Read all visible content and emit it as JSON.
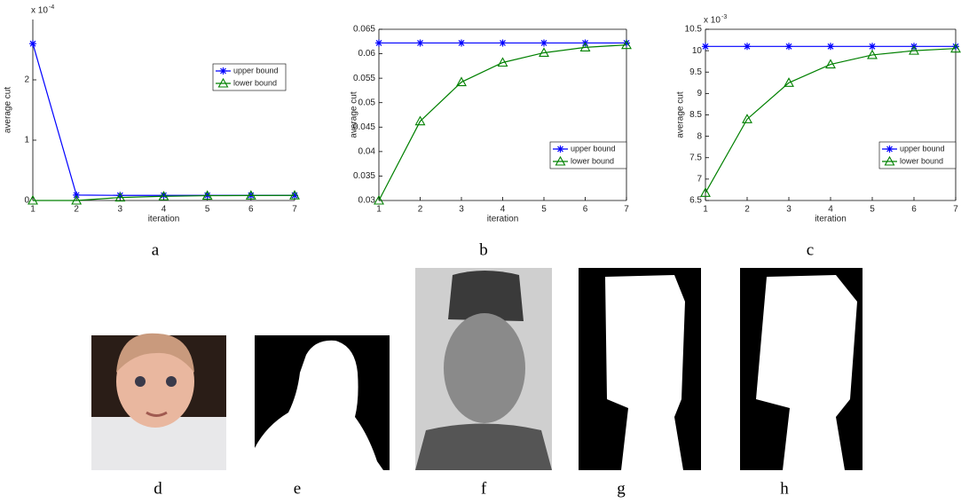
{
  "chart_data": [
    {
      "type": "line",
      "xlabel": "iteration",
      "ylabel": "average cut",
      "y_multiplier": {
        "base": "x 10",
        "exponent": "-4"
      },
      "x": [
        1,
        2,
        3,
        4,
        5,
        6,
        7
      ],
      "xlim": [
        1,
        7
      ],
      "xticks": [
        1,
        2,
        3,
        4,
        5,
        6,
        7
      ],
      "ylim": [
        0,
        3
      ],
      "yticks": [
        0,
        1,
        2
      ],
      "legend": "upper right",
      "box": false,
      "series": [
        {
          "name": "upper bound",
          "color": "#0000ff",
          "marker": "star",
          "values": [
            2.6,
            0.09,
            0.085,
            0.085,
            0.085,
            0.085,
            0.085
          ]
        },
        {
          "name": "lower bound",
          "color": "#008000",
          "marker": "triangle",
          "values": [
            0,
            0,
            0.05,
            0.07,
            0.08,
            0.083,
            0.085
          ]
        }
      ]
    },
    {
      "type": "line",
      "xlabel": "iteration",
      "ylabel": "average cut",
      "x": [
        1,
        2,
        3,
        4,
        5,
        6,
        7
      ],
      "xlim": [
        1,
        7
      ],
      "xticks": [
        1,
        2,
        3,
        4,
        5,
        6,
        7
      ],
      "ylim": [
        0.03,
        0.065
      ],
      "yticks": [
        0.03,
        0.035,
        0.04,
        0.045,
        0.05,
        0.055,
        0.06,
        0.065
      ],
      "legend": "lower right",
      "box": true,
      "series": [
        {
          "name": "upper bound",
          "color": "#0000ff",
          "marker": "star",
          "values": [
            0.0622,
            0.0622,
            0.0622,
            0.0622,
            0.0622,
            0.0622,
            0.0622
          ]
        },
        {
          "name": "lower bound",
          "color": "#008000",
          "marker": "triangle",
          "values": [
            0.03,
            0.0462,
            0.0542,
            0.0582,
            0.0602,
            0.0613,
            0.0618
          ]
        }
      ]
    },
    {
      "type": "line",
      "xlabel": "iteration",
      "ylabel": "average cut",
      "y_multiplier": {
        "base": "x 10",
        "exponent": "-3"
      },
      "x": [
        1,
        2,
        3,
        4,
        5,
        6,
        7
      ],
      "xlim": [
        1,
        7
      ],
      "xticks": [
        1,
        2,
        3,
        4,
        5,
        6,
        7
      ],
      "ylim": [
        6.5,
        10.5
      ],
      "yticks": [
        6.5,
        7,
        7.5,
        8,
        8.5,
        9,
        9.5,
        10,
        10.5
      ],
      "legend": "lower right",
      "box": true,
      "series": [
        {
          "name": "upper bound",
          "color": "#0000ff",
          "marker": "star",
          "values": [
            10.1,
            10.1,
            10.1,
            10.1,
            10.1,
            10.1,
            10.1
          ]
        },
        {
          "name": "lower bound",
          "color": "#008000",
          "marker": "triangle",
          "values": [
            6.68,
            8.4,
            9.25,
            9.68,
            9.9,
            10.0,
            10.05
          ]
        }
      ]
    }
  ],
  "captions": [
    "a",
    "b",
    "c",
    "d",
    "e",
    "f",
    "g",
    "h"
  ]
}
